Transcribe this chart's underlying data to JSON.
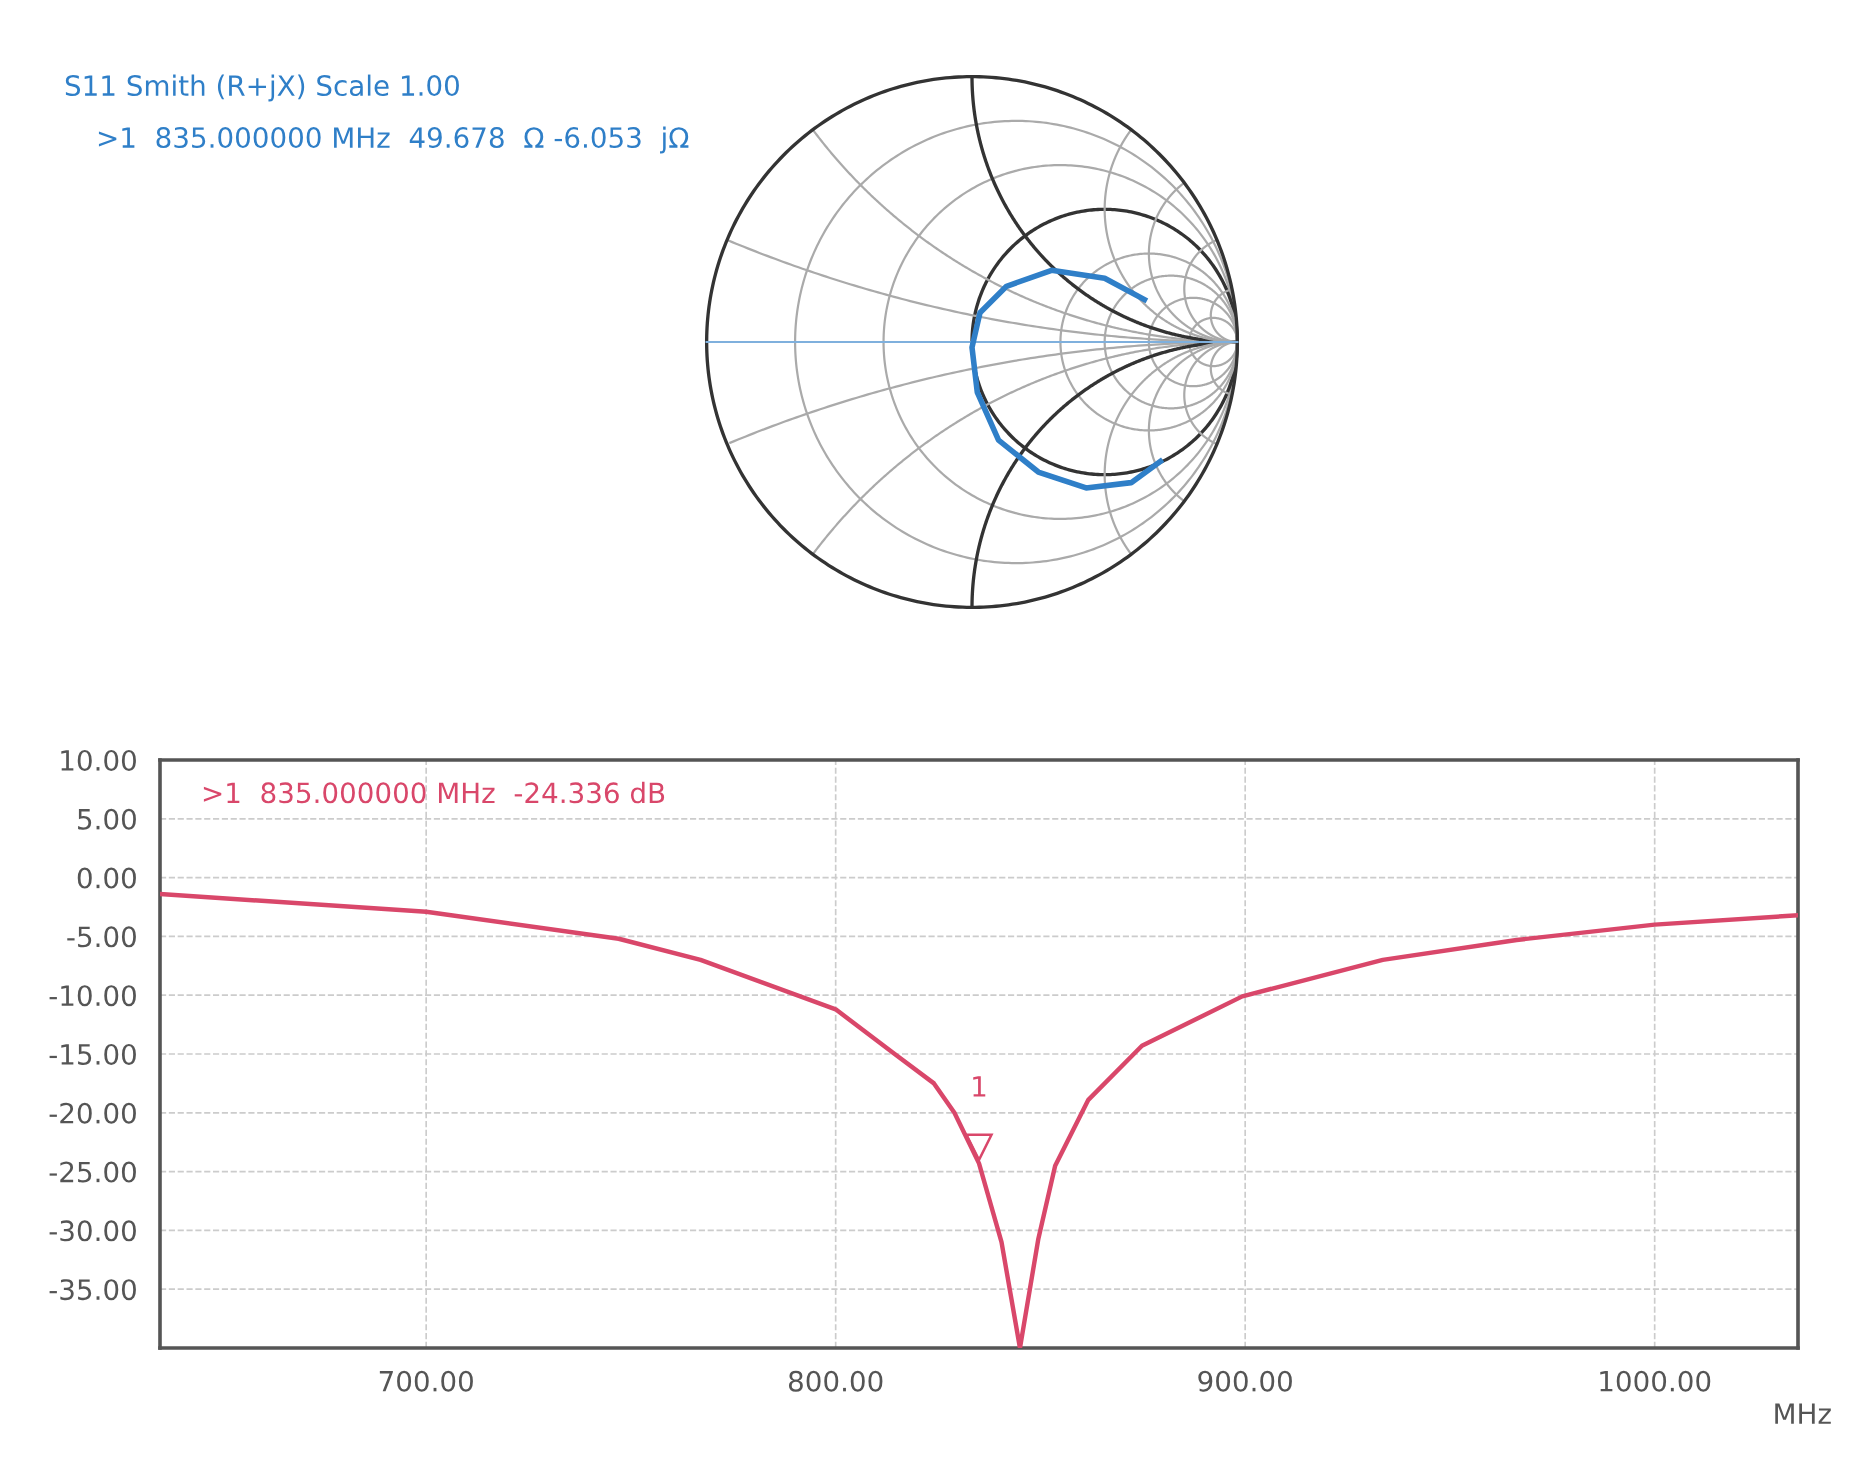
{
  "chart_data": [
    {
      "type": "other",
      "title": "S11 Smith (R+jX) Scale 1.00",
      "annotations": [
        ">1  835.000000 MHz  49.678  Ω -6.053  jΩ"
      ],
      "color": "#2f7fc8"
    },
    {
      "type": "line",
      "xlabel": "MHz",
      "annotations": [
        ">1  835.000000 MHz  -24.336 dB",
        {
          "text": "1",
          "x": 835,
          "y": -24.3
        }
      ],
      "xlim": [
        635,
        1035
      ],
      "ylim": [
        -40,
        10
      ],
      "xticks": [
        {
          "value": 700,
          "label": "700.00"
        },
        {
          "value": 800,
          "label": "800.00"
        },
        {
          "value": 900,
          "label": "900.00"
        },
        {
          "value": 1000,
          "label": "1000.00"
        }
      ],
      "yticks": [
        {
          "value": 10,
          "label": "10.00"
        },
        {
          "value": 5,
          "label": "5.00"
        },
        {
          "value": 0,
          "label": "0.00"
        },
        {
          "value": -5,
          "label": "-5.00"
        },
        {
          "value": -10,
          "label": "-10.00"
        },
        {
          "value": -15,
          "label": "-15.00"
        },
        {
          "value": -20,
          "label": "-20.00"
        },
        {
          "value": -25,
          "label": "-25.00"
        },
        {
          "value": -30,
          "label": "-30.00"
        },
        {
          "value": -35,
          "label": "-35.00"
        }
      ],
      "grid": true,
      "series": [
        {
          "color": "#d9476a",
          "x": [
            635,
            700,
            747,
            767,
            800,
            814,
            824,
            829,
            835,
            840.5,
            845,
            849.5,
            853.6,
            861.7,
            874.8,
            899.3,
            933.6,
            966.3,
            1000,
            1035
          ],
          "values": [
            -1.4,
            -2.9,
            -5.2,
            -7.0,
            -11.2,
            -14.9,
            -17.5,
            -20.0,
            -24.3,
            -31.0,
            -40,
            -30.7,
            -24.5,
            -18.9,
            -14.3,
            -10.1,
            -7.0,
            -5.3,
            -4.0,
            -3.2
          ]
        }
      ]
    }
  ]
}
